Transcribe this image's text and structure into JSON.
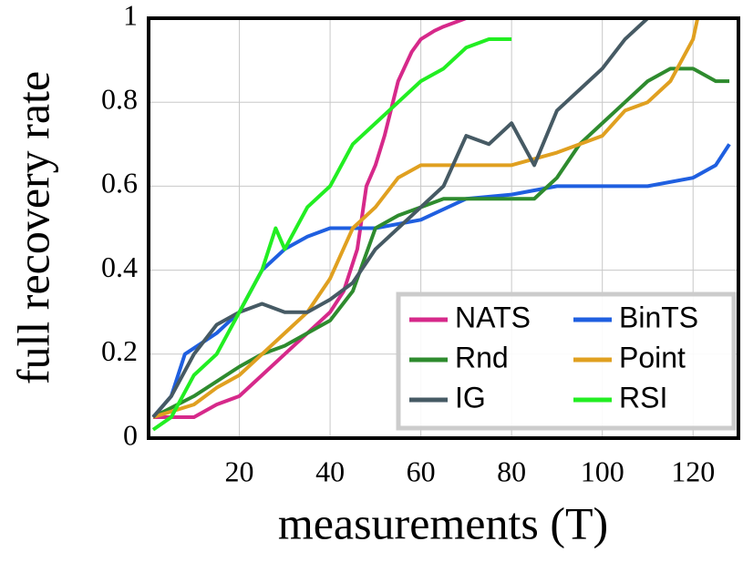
{
  "chart_data": {
    "type": "line",
    "xlabel": "measurements (T)",
    "ylabel": "full recovery rate",
    "xlim": [
      0,
      130
    ],
    "ylim": [
      0,
      1
    ],
    "xticks": [
      20,
      40,
      60,
      80,
      100,
      120
    ],
    "yticks": [
      0,
      0.2,
      0.4,
      0.6,
      0.8,
      1
    ],
    "grid": true,
    "legend": "lower right",
    "series": [
      {
        "name": "NATS",
        "color": "#d6298a",
        "x": [
          1,
          5,
          10,
          15,
          20,
          25,
          30,
          35,
          40,
          43,
          46,
          48,
          50,
          52,
          55,
          58,
          60,
          63,
          65,
          70,
          80,
          100,
          128
        ],
        "values": [
          0.05,
          0.05,
          0.05,
          0.08,
          0.1,
          0.15,
          0.2,
          0.25,
          0.3,
          0.35,
          0.45,
          0.6,
          0.65,
          0.72,
          0.85,
          0.92,
          0.95,
          0.97,
          0.98,
          1,
          1,
          1,
          1
        ]
      },
      {
        "name": "BinTS",
        "color": "#1f5fe0",
        "x": [
          1,
          5,
          8,
          15,
          20,
          25,
          30,
          35,
          40,
          50,
          60,
          70,
          80,
          90,
          100,
          110,
          120,
          125,
          128
        ],
        "values": [
          0.05,
          0.1,
          0.2,
          0.25,
          0.3,
          0.4,
          0.45,
          0.48,
          0.5,
          0.5,
          0.52,
          0.57,
          0.58,
          0.6,
          0.6,
          0.6,
          0.62,
          0.65,
          0.7
        ]
      },
      {
        "name": "Rnd",
        "color": "#2e8b2e",
        "x": [
          1,
          10,
          20,
          25,
          30,
          35,
          40,
          45,
          50,
          55,
          60,
          65,
          70,
          75,
          80,
          85,
          88,
          90,
          95,
          100,
          105,
          110,
          115,
          120,
          125,
          128
        ],
        "values": [
          0.05,
          0.1,
          0.17,
          0.2,
          0.22,
          0.25,
          0.28,
          0.35,
          0.5,
          0.53,
          0.55,
          0.57,
          0.57,
          0.57,
          0.57,
          0.57,
          0.6,
          0.62,
          0.7,
          0.75,
          0.8,
          0.85,
          0.88,
          0.88,
          0.85,
          0.85
        ]
      },
      {
        "name": "Point",
        "color": "#e0a020",
        "x": [
          1,
          10,
          15,
          20,
          25,
          30,
          35,
          40,
          45,
          50,
          55,
          60,
          70,
          80,
          90,
          100,
          105,
          110,
          115,
          120,
          121,
          128
        ],
        "values": [
          0.05,
          0.08,
          0.12,
          0.15,
          0.2,
          0.25,
          0.3,
          0.38,
          0.5,
          0.55,
          0.62,
          0.65,
          0.65,
          0.65,
          0.68,
          0.72,
          0.78,
          0.8,
          0.85,
          0.95,
          1,
          1
        ]
      },
      {
        "name": "IG",
        "color": "#465a64",
        "x": [
          1,
          5,
          10,
          15,
          20,
          25,
          30,
          35,
          40,
          45,
          50,
          55,
          60,
          65,
          70,
          75,
          80,
          85,
          90,
          95,
          100,
          105,
          110
        ],
        "values": [
          0.05,
          0.1,
          0.2,
          0.27,
          0.3,
          0.32,
          0.3,
          0.3,
          0.33,
          0.37,
          0.45,
          0.5,
          0.55,
          0.6,
          0.72,
          0.7,
          0.75,
          0.65,
          0.78,
          0.83,
          0.88,
          0.95,
          1
        ]
      },
      {
        "name": "RSI",
        "color": "#22ee22",
        "x": [
          1,
          5,
          10,
          15,
          20,
          25,
          28,
          30,
          35,
          40,
          45,
          50,
          55,
          60,
          65,
          70,
          75,
          80
        ],
        "values": [
          0.02,
          0.05,
          0.15,
          0.2,
          0.3,
          0.4,
          0.5,
          0.45,
          0.55,
          0.6,
          0.7,
          0.75,
          0.8,
          0.85,
          0.88,
          0.93,
          0.95,
          0.95
        ]
      }
    ]
  }
}
